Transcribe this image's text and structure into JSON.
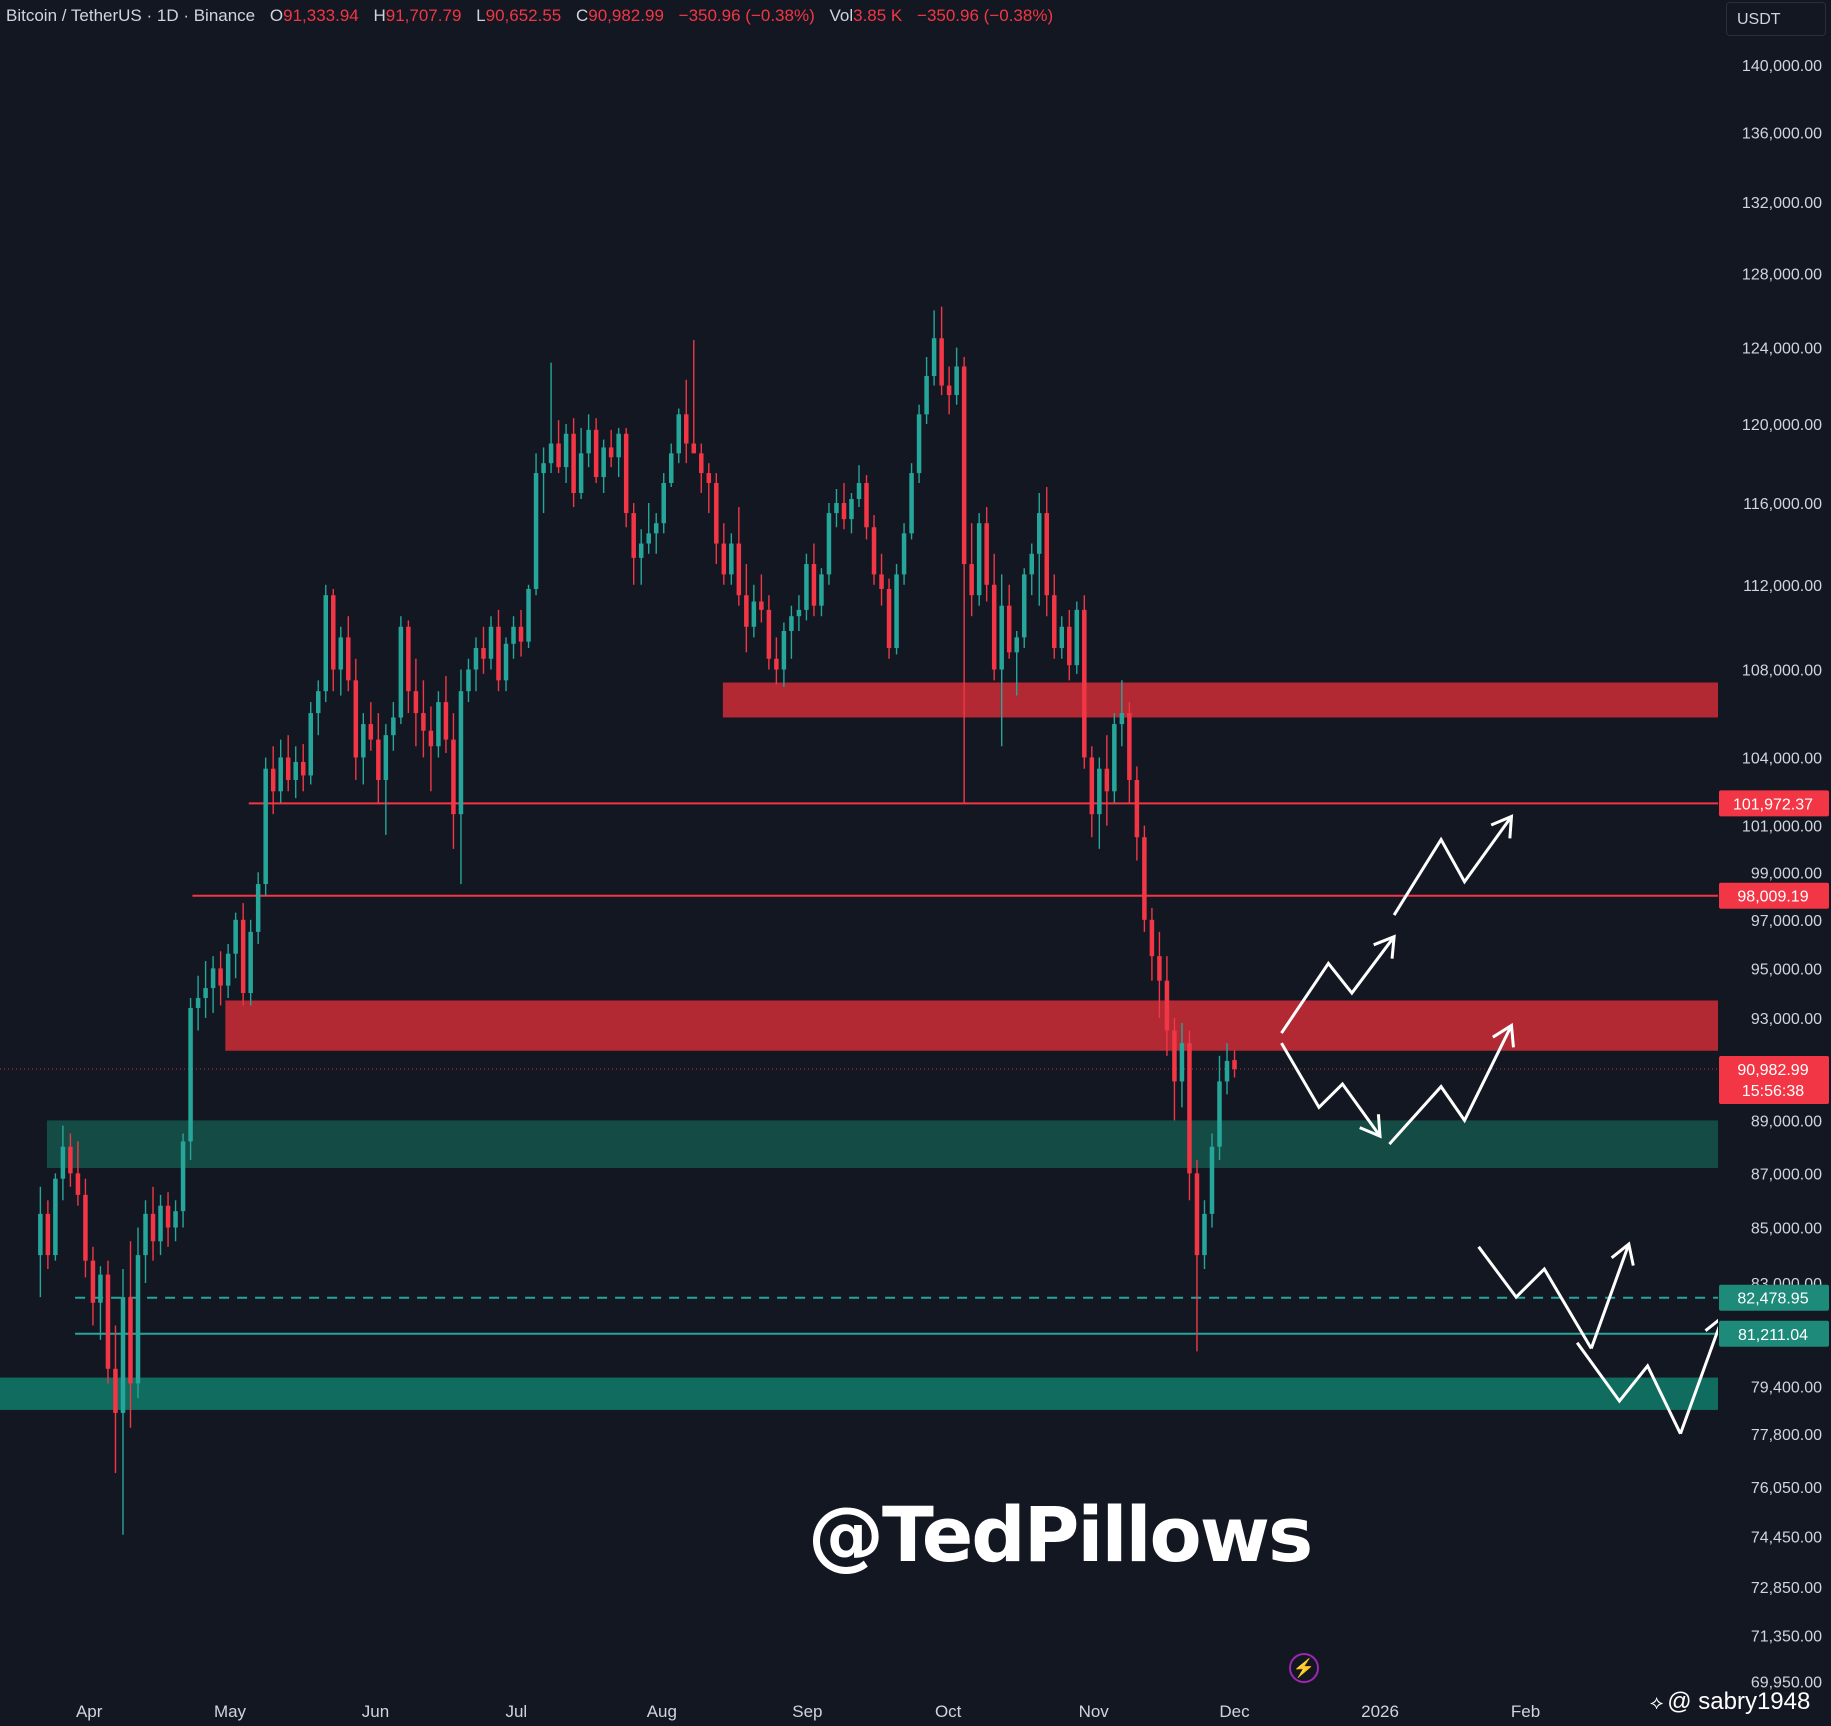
{
  "header": {
    "symbol": "Bitcoin / TetherUS · 1D · Binance",
    "open_label": "O",
    "open": "91,333.94",
    "high_label": "H",
    "high": "91,707.79",
    "low_label": "L",
    "low": "90,652.55",
    "close_label": "C",
    "close": "90,982.99",
    "change": "−350.96 (−0.38%)",
    "vol_label": "Vol",
    "vol": "3.85 K",
    "vol_change": "−350.96 (−0.38%)"
  },
  "currency": "USDT",
  "watermark": "@TedPillows",
  "credit": {
    "mark": "⟡",
    "text": "@ sabry1948"
  },
  "colors": {
    "background": "#131722",
    "up": "#26a69a",
    "down": "#f23645",
    "resistance_zone": "#b22833",
    "support_zone_dark": "#144b45",
    "support_zone_light": "#0f6c5e",
    "support_line": "#26a69a",
    "resistance_line": "#f23645",
    "arrow": "#ffffff"
  },
  "chart_data": {
    "type": "candlestick",
    "title": "Bitcoin / TetherUS · 1D · Binance",
    "x_ticks": [
      "Apr",
      "May",
      "Jun",
      "Jul",
      "Aug",
      "Sep",
      "Oct",
      "Nov",
      "Dec",
      "2026",
      "Feb"
    ],
    "x_tick_positions_days": [
      13,
      43,
      74,
      104,
      135,
      166,
      196,
      227,
      257,
      288,
      319
    ],
    "x_range_days": [
      -6,
      360
    ],
    "y_ticks": [
      "140,000.00",
      "136,000.00",
      "132,000.00",
      "128,000.00",
      "124,000.00",
      "120,000.00",
      "116,000.00",
      "112,000.00",
      "108,000.00",
      "104,000.00",
      "101,000.00",
      "99,000.00",
      "97,000.00",
      "95,000.00",
      "93,000.00",
      "89,000.00",
      "87,000.00",
      "85,000.00",
      "83,000.00",
      "79,400.00",
      "77,800.00",
      "76,050.00",
      "74,450.00",
      "72,850.00",
      "71,350.00",
      "69,950.00"
    ],
    "y_scale": "log",
    "y_range": [
      69400,
      141500
    ],
    "grid": false,
    "candles": [
      [
        84000,
        86500,
        82500,
        85500
      ],
      [
        85500,
        86000,
        83500,
        84000
      ],
      [
        84000,
        87000,
        83800,
        86800
      ],
      [
        86800,
        88800,
        86000,
        88000
      ],
      [
        88000,
        88500,
        86500,
        87000
      ],
      [
        87000,
        88200,
        85800,
        86200
      ],
      [
        86200,
        86800,
        83200,
        83800
      ],
      [
        83800,
        84300,
        81500,
        82300
      ],
      [
        82300,
        83600,
        81000,
        83300
      ],
      [
        83300,
        83800,
        79500,
        80000
      ],
      [
        80000,
        81500,
        76500,
        78500
      ],
      [
        78500,
        83500,
        74500,
        82500
      ],
      [
        82500,
        84500,
        78000,
        79500
      ],
      [
        79500,
        85000,
        79000,
        84000
      ],
      [
        84000,
        86000,
        83000,
        85500
      ],
      [
        85500,
        86500,
        83800,
        84500
      ],
      [
        84500,
        86200,
        84000,
        85800
      ],
      [
        85800,
        86300,
        84300,
        85000
      ],
      [
        85000,
        86000,
        84500,
        85600
      ],
      [
        85600,
        88500,
        85000,
        88200
      ],
      [
        88200,
        93800,
        87500,
        93400
      ],
      [
        93400,
        94700,
        92500,
        93800
      ],
      [
        93800,
        95300,
        93000,
        94200
      ],
      [
        94200,
        95500,
        93200,
        95000
      ],
      [
        95000,
        95700,
        93500,
        94300
      ],
      [
        94300,
        96000,
        93800,
        95600
      ],
      [
        95600,
        97300,
        94600,
        97000
      ],
      [
        97000,
        97700,
        93500,
        94000
      ],
      [
        94000,
        97000,
        93500,
        96500
      ],
      [
        96500,
        99000,
        96000,
        98500
      ],
      [
        98500,
        104000,
        98000,
        103500
      ],
      [
        103500,
        104500,
        101500,
        102500
      ],
      [
        102500,
        104800,
        102000,
        104000
      ],
      [
        104000,
        105000,
        102500,
        103000
      ],
      [
        103000,
        104500,
        102200,
        103800
      ],
      [
        103800,
        104600,
        102500,
        103200
      ],
      [
        103200,
        106500,
        102800,
        106000
      ],
      [
        106000,
        107500,
        105000,
        107000
      ],
      [
        107000,
        112000,
        106500,
        111500
      ],
      [
        111500,
        111800,
        107000,
        108000
      ],
      [
        108000,
        110000,
        106800,
        109500
      ],
      [
        109500,
        110500,
        107000,
        107500
      ],
      [
        107500,
        108500,
        103000,
        104000
      ],
      [
        104000,
        106000,
        102800,
        105500
      ],
      [
        105500,
        106500,
        104300,
        104800
      ],
      [
        104800,
        106000,
        102000,
        103000
      ],
      [
        103000,
        105500,
        100600,
        105000
      ],
      [
        105000,
        106500,
        104300,
        105800
      ],
      [
        105800,
        110500,
        105500,
        110000
      ],
      [
        110000,
        110300,
        106000,
        107000
      ],
      [
        107000,
        108500,
        104500,
        106000
      ],
      [
        106000,
        107500,
        104000,
        105200
      ],
      [
        105200,
        106300,
        102500,
        104500
      ],
      [
        104500,
        107000,
        104000,
        106500
      ],
      [
        106500,
        107700,
        104200,
        104800
      ],
      [
        104800,
        106000,
        100000,
        101500
      ],
      [
        101500,
        108000,
        98500,
        107000
      ],
      [
        107000,
        108500,
        106500,
        108000
      ],
      [
        108000,
        109500,
        107000,
        109000
      ],
      [
        109000,
        110000,
        107800,
        108500
      ],
      [
        108500,
        110500,
        108000,
        110000
      ],
      [
        110000,
        110800,
        107000,
        107500
      ],
      [
        107500,
        109500,
        107000,
        109200
      ],
      [
        109200,
        110500,
        108500,
        110000
      ],
      [
        110000,
        110800,
        108600,
        109300
      ],
      [
        109300,
        112000,
        109000,
        111800
      ],
      [
        111800,
        118500,
        111500,
        117500
      ],
      [
        117500,
        118800,
        115500,
        118000
      ],
      [
        118000,
        123200,
        117500,
        119000
      ],
      [
        119000,
        120200,
        117500,
        117800
      ],
      [
        117800,
        120000,
        117000,
        119500
      ],
      [
        119500,
        120300,
        115800,
        116500
      ],
      [
        116500,
        119800,
        116200,
        118500
      ],
      [
        118500,
        120500,
        117800,
        119700
      ],
      [
        119700,
        120300,
        117000,
        117300
      ],
      [
        117300,
        119200,
        116500,
        118800
      ],
      [
        118800,
        119700,
        117800,
        118300
      ],
      [
        118300,
        119800,
        117300,
        119500
      ],
      [
        119500,
        119800,
        114800,
        115500
      ],
      [
        115500,
        116000,
        112000,
        113300
      ],
      [
        113300,
        114700,
        112000,
        114000
      ],
      [
        114000,
        116000,
        113500,
        114500
      ],
      [
        114500,
        115500,
        113500,
        115000
      ],
      [
        115000,
        117500,
        114500,
        117000
      ],
      [
        117000,
        119000,
        116800,
        118500
      ],
      [
        118500,
        120800,
        118000,
        120500
      ],
      [
        120500,
        122300,
        118000,
        119000
      ],
      [
        119000,
        124400,
        118500,
        118500
      ],
      [
        118500,
        119000,
        116500,
        117500
      ],
      [
        117500,
        118000,
        115500,
        117000
      ],
      [
        117000,
        117500,
        113000,
        114000
      ],
      [
        114000,
        115000,
        112000,
        112500
      ],
      [
        112500,
        114500,
        112000,
        114000
      ],
      [
        114000,
        115800,
        111000,
        111500
      ],
      [
        111500,
        113000,
        108800,
        110000
      ],
      [
        110000,
        112000,
        109500,
        111200
      ],
      [
        111200,
        112500,
        110200,
        110800
      ],
      [
        110800,
        111500,
        108000,
        108500
      ],
      [
        108500,
        109500,
        107300,
        108000
      ],
      [
        108000,
        110200,
        107200,
        109800
      ],
      [
        109800,
        111000,
        108500,
        110500
      ],
      [
        110500,
        111500,
        109800,
        110800
      ],
      [
        110800,
        113500,
        110300,
        113000
      ],
      [
        113000,
        114000,
        110500,
        111000
      ],
      [
        111000,
        112800,
        110500,
        112500
      ],
      [
        112500,
        116000,
        112000,
        115500
      ],
      [
        115500,
        116700,
        114800,
        116000
      ],
      [
        116000,
        117000,
        114700,
        115200
      ],
      [
        115200,
        116500,
        114500,
        116200
      ],
      [
        116200,
        117900,
        115800,
        117000
      ],
      [
        117000,
        117400,
        114200,
        114800
      ],
      [
        114800,
        115400,
        112000,
        112500
      ],
      [
        112500,
        113500,
        111000,
        111800
      ],
      [
        111800,
        112300,
        108500,
        109000
      ],
      [
        109000,
        113000,
        108700,
        112500
      ],
      [
        112500,
        115000,
        112000,
        114500
      ],
      [
        114500,
        118000,
        114200,
        117500
      ],
      [
        117500,
        121000,
        117000,
        120500
      ],
      [
        120500,
        123500,
        120000,
        122500
      ],
      [
        122500,
        126000,
        122000,
        124500
      ],
      [
        124500,
        126200,
        121500,
        122000
      ],
      [
        122000,
        123000,
        120500,
        121500
      ],
      [
        121500,
        124000,
        121000,
        123000
      ],
      [
        123000,
        123500,
        102000,
        113000
      ],
      [
        113000,
        115000,
        110500,
        111500
      ],
      [
        111500,
        115500,
        111000,
        115000
      ],
      [
        115000,
        115800,
        111200,
        112000
      ],
      [
        112000,
        113500,
        107500,
        108000
      ],
      [
        108000,
        112500,
        104500,
        111000
      ],
      [
        111000,
        112000,
        108500,
        108800
      ],
      [
        108800,
        109800,
        106800,
        109500
      ],
      [
        109500,
        112800,
        109000,
        112500
      ],
      [
        112500,
        114000,
        111500,
        113500
      ],
      [
        113500,
        116500,
        111000,
        115500
      ],
      [
        115500,
        116800,
        110500,
        111500
      ],
      [
        111500,
        112500,
        108500,
        109000
      ],
      [
        109000,
        110500,
        108500,
        110000
      ],
      [
        110000,
        110800,
        107500,
        108200
      ],
      [
        108200,
        111200,
        107800,
        110800
      ],
      [
        110800,
        111500,
        103500,
        104000
      ],
      [
        104000,
        104500,
        100500,
        101500
      ],
      [
        101500,
        104000,
        100000,
        103500
      ],
      [
        103500,
        105000,
        101000,
        102500
      ],
      [
        102500,
        106000,
        102000,
        105500
      ],
      [
        105500,
        107500,
        104500,
        106000
      ],
      [
        106000,
        106500,
        102000,
        103000
      ],
      [
        103000,
        103600,
        99500,
        100500
      ],
      [
        100500,
        101000,
        96500,
        97000
      ],
      [
        97000,
        97500,
        94500,
        95500
      ],
      [
        95500,
        96500,
        93000,
        94500
      ],
      [
        94500,
        95500,
        91500,
        92500
      ],
      [
        92500,
        93000,
        89000,
        90500
      ],
      [
        90500,
        92800,
        89500,
        92000
      ],
      [
        92000,
        92500,
        86000,
        87000
      ],
      [
        87000,
        87500,
        80600,
        84000
      ],
      [
        84000,
        86000,
        83500,
        85500
      ],
      [
        85500,
        88500,
        85000,
        88000
      ],
      [
        88000,
        91500,
        87500,
        90500
      ],
      [
        90500,
        92000,
        90000,
        91300
      ],
      [
        91333.94,
        91707.79,
        90652.55,
        90982.99
      ]
    ],
    "last_candle_day": 257,
    "zones": [
      {
        "kind": "resistance",
        "y_top": 107400,
        "y_bottom": 105800,
        "x_start_day": 148
      },
      {
        "kind": "resistance",
        "y_top": 93700,
        "y_bottom": 91700,
        "x_start_day": 42
      },
      {
        "kind": "support_dark",
        "y_top": 89000,
        "y_bottom": 87200,
        "x_start_day": 4
      },
      {
        "kind": "support_light",
        "y_top": 79700,
        "y_bottom": 78600,
        "x_start_day": -6
      }
    ],
    "levels": [
      {
        "price": 101972.37,
        "label": "101,972.37",
        "kind": "resistance",
        "style": "solid",
        "x_start_day": 47
      },
      {
        "price": 98009.19,
        "label": "98,009.19",
        "kind": "resistance",
        "style": "solid",
        "x_start_day": 35
      },
      {
        "price": 82478.95,
        "label": "82,478.95",
        "kind": "support",
        "style": "dashed",
        "x_start_day": 10
      },
      {
        "price": 81211.04,
        "label": "81,211.04",
        "kind": "support",
        "style": "solid",
        "x_start_day": 10
      }
    ],
    "last_price": {
      "label": "90,982.99",
      "countdown": "15:56:38"
    },
    "paths": [
      {
        "points": [
          [
            267,
            92400
          ],
          [
            277,
            95200
          ],
          [
            282,
            94000
          ],
          [
            291,
            96300
          ]
        ],
        "arrow": true
      },
      {
        "points": [
          [
            291,
            97200
          ],
          [
            301,
            100400
          ],
          [
            306,
            98600
          ],
          [
            316,
            101400
          ]
        ],
        "arrow": true
      },
      {
        "points": [
          [
            267,
            92000
          ],
          [
            275,
            89500
          ],
          [
            280,
            90400
          ],
          [
            288,
            88400
          ]
        ],
        "arrow": true
      },
      {
        "points": [
          [
            290,
            88100
          ],
          [
            301,
            90300
          ],
          [
            306,
            89000
          ],
          [
            316,
            92700
          ]
        ],
        "arrow": true
      },
      {
        "points": [
          [
            309,
            84300
          ],
          [
            317,
            82500
          ],
          [
            323,
            83500
          ],
          [
            333,
            80700
          ]
        ],
        "arrow": false
      },
      {
        "points": [
          [
            333,
            80700
          ],
          [
            341,
            84400
          ]
        ],
        "arrow": true
      },
      {
        "points": [
          [
            330,
            80900
          ],
          [
            339,
            78900
          ],
          [
            345,
            80100
          ],
          [
            352,
            77800
          ]
        ],
        "arrow": false
      },
      {
        "points": [
          [
            352,
            77800
          ],
          [
            361,
            81800
          ]
        ],
        "arrow": true
      }
    ]
  }
}
